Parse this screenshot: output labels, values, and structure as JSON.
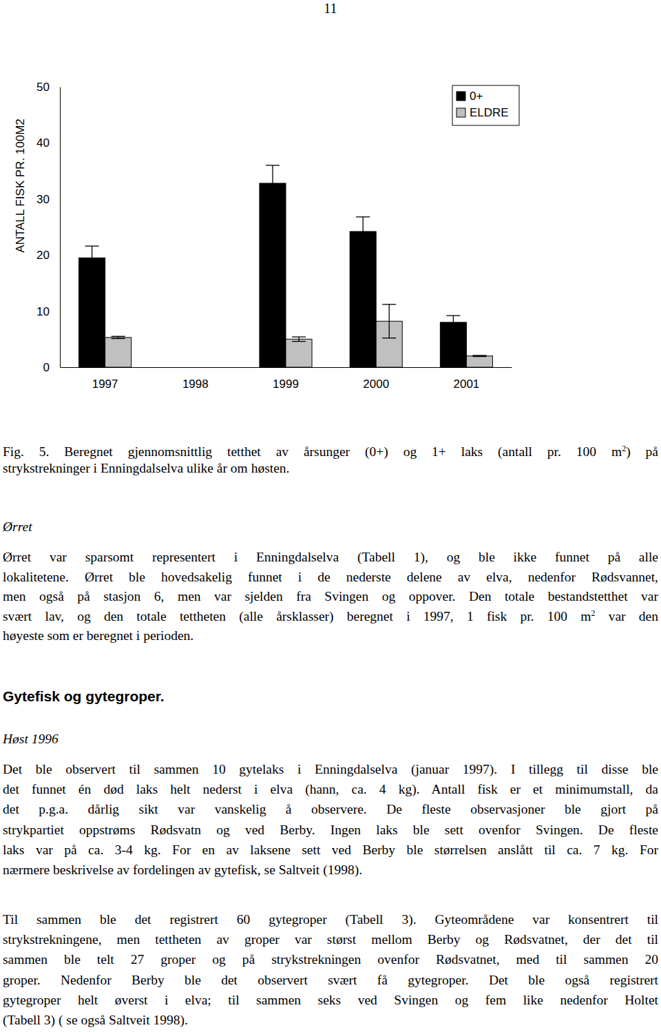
{
  "page_number": "11",
  "chart_data": {
    "type": "bar",
    "categories": [
      "1997",
      "1998",
      "1999",
      "2000",
      "2001"
    ],
    "ylabel": "ANTALL FISK PR. 100M2",
    "ylim": [
      0,
      50
    ],
    "yticks": [
      0,
      10,
      20,
      30,
      40,
      50
    ],
    "legend": "top-right",
    "series": [
      {
        "name": "0+",
        "color": "#000000",
        "values": [
          19.5,
          null,
          32.8,
          24.2,
          8.0
        ],
        "errors": [
          2.1,
          null,
          3.2,
          2.6,
          1.2
        ]
      },
      {
        "name": "ELDRE",
        "color": "#c0c0c0",
        "values": [
          5.3,
          null,
          5.0,
          8.2,
          2.0
        ],
        "errors": [
          0.2,
          null,
          0.4,
          3.0,
          0.1
        ]
      }
    ]
  },
  "caption": {
    "lines": [
      [
        {
          "text": "Fig.  5.  Beregnet  gjennomsnittlig  tetthet  av  årsunger  (0+)  og  1+  laks  (antall  pr.  100  m"
        },
        {
          "text": "2",
          "sup": true
        },
        {
          "text": ")  på"
        }
      ],
      "strykstrekninger i Enningdalselva ulike år om høsten."
    ]
  },
  "sections": [
    {
      "heading": "Ørret",
      "paragraphs": [
        {
          "lines": [
            "Ørret var sparsomt representert i Enningdalselva (Tabell 1), og ble ikke funnet på alle",
            "lokalitetene. Ørret ble hovedsakelig funnet i de nederste delene av elva, nedenfor Rødsvannet,",
            "men også på stasjon 6, men var sjelden fra Svingen og oppover. Den totale bestandstetthet var",
            [
              {
                "text": "svært lav, og den totale tettheten (alle årsklasser) beregnet i 1997, 1 fisk pr. 100 m"
              },
              {
                "text": "2",
                "sup": true
              },
              {
                "text": " var den"
              }
            ],
            "høyeste som er beregnet i perioden."
          ]
        }
      ]
    },
    {
      "title": "Gytefisk og gytegroper.",
      "heading": "Høst 1996",
      "paragraphs": [
        {
          "lines": [
            "Det ble  observert til sammen 10 gytelaks i Enningdalselva (januar 1997). I tillegg til disse ble",
            "det funnet én død laks helt nederst i elva (hann, ca. 4 kg). Antall fisk er et minimumstall, da",
            "det p.g.a. dårlig sikt var vanskelig å observere. De fleste observasjoner ble gjort på",
            "strykpartiet oppstrøms Rødsvatn og ved Berby. Ingen laks ble sett ovenfor Svingen. De fleste",
            "laks var på ca. 3-4 kg. For en av laksene sett ved Berby ble størrelsen anslått til ca. 7 kg. For",
            "nærmere beskrivelse av fordelingen av gytefisk, se Saltveit (1998)."
          ]
        },
        {
          "lines": [
            "Til sammen ble det registrert 60 gytegroper (Tabell 3). Gyteområdene var konsentrert til",
            "strykstrekningene, men tettheten av groper var størst mellom Berby og Rødsvatnet, der det til",
            "sammen ble telt 27 groper og på strykstrekningen ovenfor Rødsvatnet, med til sammen 20",
            "groper. Nedenfor Berby ble det observert svært få gytegroper. Det ble også registrert",
            "gytegroper helt øverst i elva; til sammen seks ved Svingen og fem like nedenfor Holtet",
            "(Tabell 3) ( se også Saltveit 1998)."
          ]
        }
      ]
    }
  ]
}
